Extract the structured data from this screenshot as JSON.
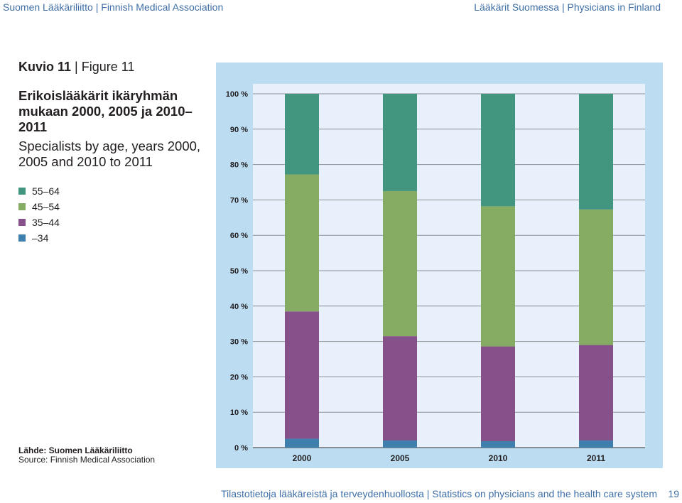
{
  "header": {
    "left": "Suomen Lääkäriliitto | Finnish Medical Association",
    "right": "Lääkärit Suomessa | Physicians in Finland"
  },
  "figure": {
    "label_fi": "Kuvio 11",
    "separator": "|",
    "label_en": "Figure 11",
    "title_fi": "Erikoislääkärit ikäryhmän mukaan 2000, 2005 ja 2010–2011",
    "title_en": "Specialists by age, years 2000, 2005 and 2010 to 2011"
  },
  "legend": [
    {
      "label": "55–64",
      "color": "#42967f"
    },
    {
      "label": "45–54",
      "color": "#86ab62"
    },
    {
      "label": "35–44",
      "color": "#86518b"
    },
    {
      "label": "–34",
      "color": "#3f7fae"
    }
  ],
  "source": {
    "fi": "Lähde: Suomen Lääkäriliitto",
    "en": "Source: Finnish Medical Association"
  },
  "footer": {
    "text": "Tilastotietoja lääkäreistä ja terveydenhuollosta | Statistics on physicians and the health care system",
    "page": "19"
  },
  "chart_data": {
    "type": "bar",
    "stacked": true,
    "categories": [
      "2000",
      "2005",
      "2010",
      "2011"
    ],
    "y_ticks": [
      "0 %",
      "10 %",
      "20 %",
      "30 %",
      "40 %",
      "50 %",
      "60 %",
      "70 %",
      "80 %",
      "90 %",
      "100 %"
    ],
    "ylim": [
      0,
      100
    ],
    "series": [
      {
        "name": "–34",
        "color": "#3f7fae",
        "values": [
          2.5,
          2.0,
          1.8,
          2.0
        ]
      },
      {
        "name": "35–44",
        "color": "#86518b",
        "values": [
          36.0,
          29.5,
          26.8,
          27.0
        ]
      },
      {
        "name": "45–54",
        "color": "#86ab62",
        "values": [
          38.7,
          41.0,
          39.6,
          38.3
        ]
      },
      {
        "name": "55–64",
        "color": "#42967f",
        "values": [
          22.8,
          27.5,
          31.8,
          32.7
        ]
      }
    ],
    "plot_background": "#e8f1fb",
    "frame_color": "#bcdcf2"
  }
}
